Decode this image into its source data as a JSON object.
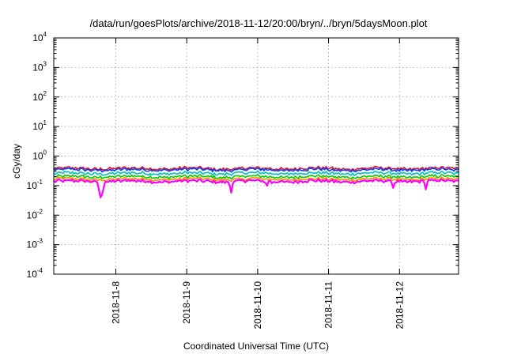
{
  "chart_data": {
    "type": "line",
    "title": "/data/run/goesPlots/archive/2018-11-12/20:00/bryn/../bryn/5daysMoon.plot",
    "xlabel": "Coordinated Universal Time (UTC)",
    "ylabel": "cGy/day",
    "yscale": "log",
    "ylim": [
      0.0001,
      10000
    ],
    "xlim": [
      "2018-11-07T03:00",
      "2018-11-12T20:00"
    ],
    "x_ticks": [
      "2018-11-8",
      "2018-11-9",
      "2018-11-10",
      "2018-11-11",
      "2018-11-12"
    ],
    "y_ticks": [
      {
        "base": "10",
        "exp": "-4"
      },
      {
        "base": "10",
        "exp": "-3"
      },
      {
        "base": "10",
        "exp": "-2"
      },
      {
        "base": "10",
        "exp": "-1"
      },
      {
        "base": "10",
        "exp": "0"
      },
      {
        "base": "10",
        "exp": "1"
      },
      {
        "base": "10",
        "exp": "2"
      },
      {
        "base": "10",
        "exp": "3"
      },
      {
        "base": "10",
        "exp": "4"
      }
    ],
    "grid": true,
    "series": [
      {
        "color": "#ff00ff",
        "approx_level": 0.14,
        "dips": [
          {
            "x": "2018-11-07T19:00",
            "y": 0.028
          },
          {
            "x": "2018-11-09T15:00",
            "y": 0.05
          },
          {
            "x": "2018-11-10T03:00",
            "y": 0.07
          },
          {
            "x": "2018-11-10T05:00",
            "y": 0.08
          },
          {
            "x": "2018-11-11T22:00",
            "y": 0.065
          },
          {
            "x": "2018-11-12T09:00",
            "y": 0.065
          }
        ]
      },
      {
        "color": "#ff8c00",
        "approx_level": 0.165
      },
      {
        "color": "#00cc00",
        "approx_level": 0.2
      },
      {
        "color": "#00bfbf",
        "approx_level": 0.26
      },
      {
        "color": "#0040ff",
        "approx_level": 0.34
      },
      {
        "color": "#e8102a",
        "approx_level": 0.38
      }
    ]
  }
}
